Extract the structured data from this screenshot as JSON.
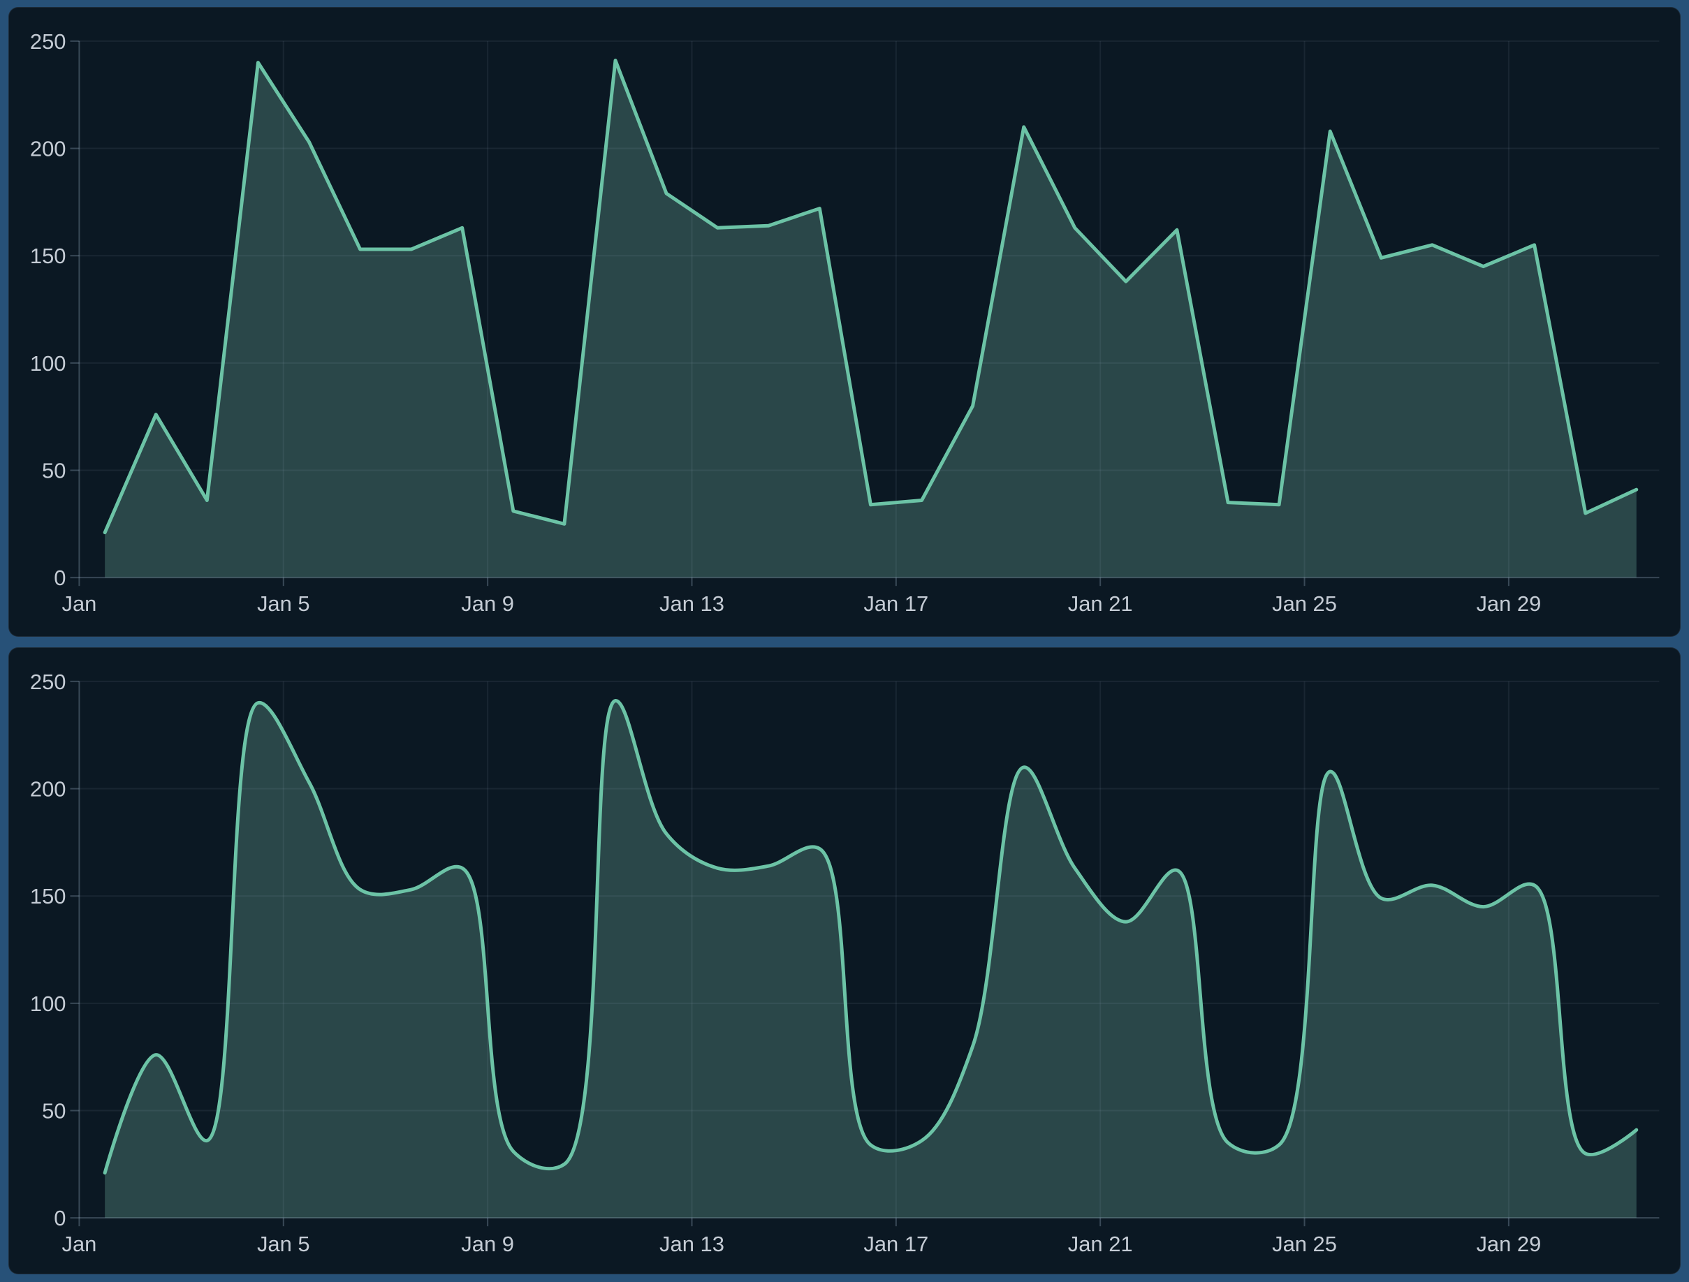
{
  "page": {
    "background": "#275178"
  },
  "panels": [
    {
      "name": "daily-area-chart-linear",
      "curve": "linear"
    },
    {
      "name": "daily-area-chart-smooth",
      "curve": "smooth"
    }
  ],
  "chart_data": [
    {
      "type": "area",
      "curve": "linear",
      "x": [
        "Jan 1",
        "Jan 2",
        "Jan 3",
        "Jan 4",
        "Jan 5",
        "Jan 6",
        "Jan 7",
        "Jan 8",
        "Jan 9",
        "Jan 10",
        "Jan 11",
        "Jan 12",
        "Jan 13",
        "Jan 14",
        "Jan 15",
        "Jan 16",
        "Jan 17",
        "Jan 18",
        "Jan 19",
        "Jan 20",
        "Jan 21",
        "Jan 22",
        "Jan 23",
        "Jan 24",
        "Jan 25",
        "Jan 26",
        "Jan 27",
        "Jan 28",
        "Jan 29",
        "Jan 30",
        "Jan 31"
      ],
      "values": [
        21,
        76,
        36,
        240,
        203,
        153,
        153,
        163,
        31,
        25,
        241,
        179,
        163,
        164,
        172,
        34,
        36,
        80,
        210,
        163,
        138,
        162,
        35,
        34,
        208,
        149,
        155,
        145,
        155,
        30,
        41
      ],
      "x_tick_labels": [
        "Jan",
        "Jan 5",
        "Jan 9",
        "Jan 13",
        "Jan 17",
        "Jan 21",
        "Jan 25",
        "Jan 29"
      ],
      "x_tick_days": [
        1,
        5,
        9,
        13,
        17,
        21,
        25,
        29
      ],
      "y_tick_labels": [
        "0",
        "50",
        "100",
        "150",
        "200",
        "250"
      ],
      "y_ticks": [
        0,
        50,
        100,
        150,
        200,
        250
      ],
      "ylim": [
        0,
        250
      ],
      "grid": true,
      "legend": false,
      "colors": {
        "line": "#6cc3a6",
        "fill": "#2a4749",
        "background": "#0b1823",
        "grid": "rgba(166,190,210,0.09)",
        "axis": "rgba(166,190,210,0.30)",
        "label": "#c5ccd5",
        "frame": "#275178"
      }
    },
    {
      "type": "area",
      "curve": "smooth",
      "x": [
        "Jan 1",
        "Jan 2",
        "Jan 3",
        "Jan 4",
        "Jan 5",
        "Jan 6",
        "Jan 7",
        "Jan 8",
        "Jan 9",
        "Jan 10",
        "Jan 11",
        "Jan 12",
        "Jan 13",
        "Jan 14",
        "Jan 15",
        "Jan 16",
        "Jan 17",
        "Jan 18",
        "Jan 19",
        "Jan 20",
        "Jan 21",
        "Jan 22",
        "Jan 23",
        "Jan 24",
        "Jan 25",
        "Jan 26",
        "Jan 27",
        "Jan 28",
        "Jan 29",
        "Jan 30",
        "Jan 31"
      ],
      "values": [
        21,
        76,
        36,
        240,
        203,
        153,
        153,
        163,
        31,
        25,
        241,
        179,
        163,
        164,
        172,
        34,
        36,
        80,
        210,
        163,
        138,
        162,
        35,
        34,
        208,
        149,
        155,
        145,
        155,
        30,
        41
      ],
      "x_tick_labels": [
        "Jan",
        "Jan 5",
        "Jan 9",
        "Jan 13",
        "Jan 17",
        "Jan 21",
        "Jan 25",
        "Jan 29"
      ],
      "x_tick_days": [
        1,
        5,
        9,
        13,
        17,
        21,
        25,
        29
      ],
      "y_tick_labels": [
        "0",
        "50",
        "100",
        "150",
        "200",
        "250"
      ],
      "y_ticks": [
        0,
        50,
        100,
        150,
        200,
        250
      ],
      "ylim": [
        0,
        250
      ],
      "grid": true,
      "legend": false,
      "colors": {
        "line": "#6cc3a6",
        "fill": "#2a4749",
        "background": "#0b1823",
        "grid": "rgba(166,190,210,0.09)",
        "axis": "rgba(166,190,210,0.30)",
        "label": "#c5ccd5",
        "frame": "#275178"
      }
    }
  ]
}
